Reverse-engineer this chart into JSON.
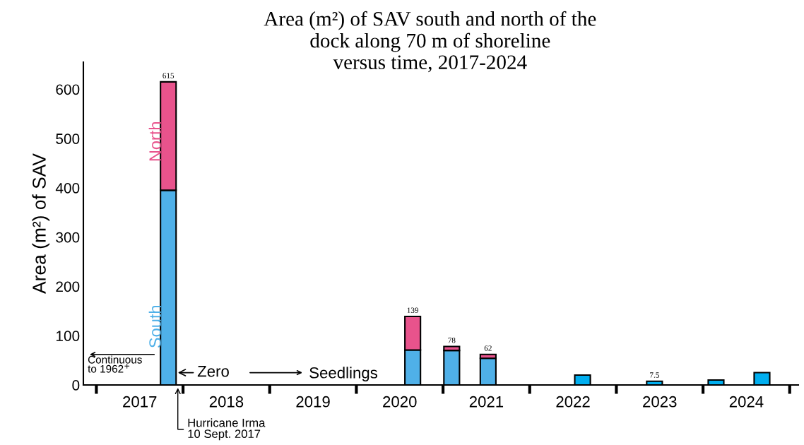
{
  "chart_data": {
    "type": "bar",
    "stacked": true,
    "title": "Area (m²) of SAV south and north of the\ndock along 70 m of shoreline\nversus time, 2017-2024",
    "ylabel": "Area (m²) of SAV",
    "x": [
      2017.83,
      2020.65,
      2021.1,
      2021.52,
      2022.61,
      2023.44,
      2024.15,
      2024.68
    ],
    "series": [
      {
        "name": "South",
        "color": "#4fb0e8",
        "colors": [
          "#4fb0e8",
          "#4fb0e8",
          "#4fb0e8",
          "#4fb0e8",
          "#00aeef",
          "#00aeef",
          "#00aeef",
          "#00aeef"
        ],
        "values": [
          395,
          71,
          70,
          54,
          20,
          7.5,
          10,
          25
        ]
      },
      {
        "name": "North",
        "color": "#e8538c",
        "values": [
          220,
          68,
          8,
          8,
          null,
          null,
          null,
          null
        ]
      }
    ],
    "totals": [
      "615",
      "139",
      "78",
      "62",
      null,
      "7.5",
      null,
      null
    ],
    "xlim": [
      2016.85,
      2025.1
    ],
    "xticks": [
      {
        "value": 2017,
        "label": null
      },
      {
        "value": 2017.5,
        "label": "2017"
      },
      {
        "value": 2018,
        "label": null
      },
      {
        "value": 2018.5,
        "label": "2018"
      },
      {
        "value": 2019,
        "label": null
      },
      {
        "value": 2019.5,
        "label": "2019"
      },
      {
        "value": 2020,
        "label": null
      },
      {
        "value": 2020.5,
        "label": "2020"
      },
      {
        "value": 2021,
        "label": null
      },
      {
        "value": 2021.5,
        "label": "2021"
      },
      {
        "value": 2022,
        "label": null
      },
      {
        "value": 2022.5,
        "label": "2022"
      },
      {
        "value": 2023,
        "label": null
      },
      {
        "value": 2023.5,
        "label": "2023"
      },
      {
        "value": 2024,
        "label": null
      },
      {
        "value": 2024.5,
        "label": "2024"
      },
      {
        "value": 2025,
        "label": null
      }
    ],
    "ylim": [
      0,
      655
    ],
    "yticks": [
      0,
      100,
      200,
      300,
      400,
      500,
      600
    ],
    "grid": false,
    "annotations": [
      "Continuous\nto 1962$^{+}$",
      "Zero",
      "Seedlings",
      "Hurricane Irma\n10 Sept. 2017"
    ]
  }
}
